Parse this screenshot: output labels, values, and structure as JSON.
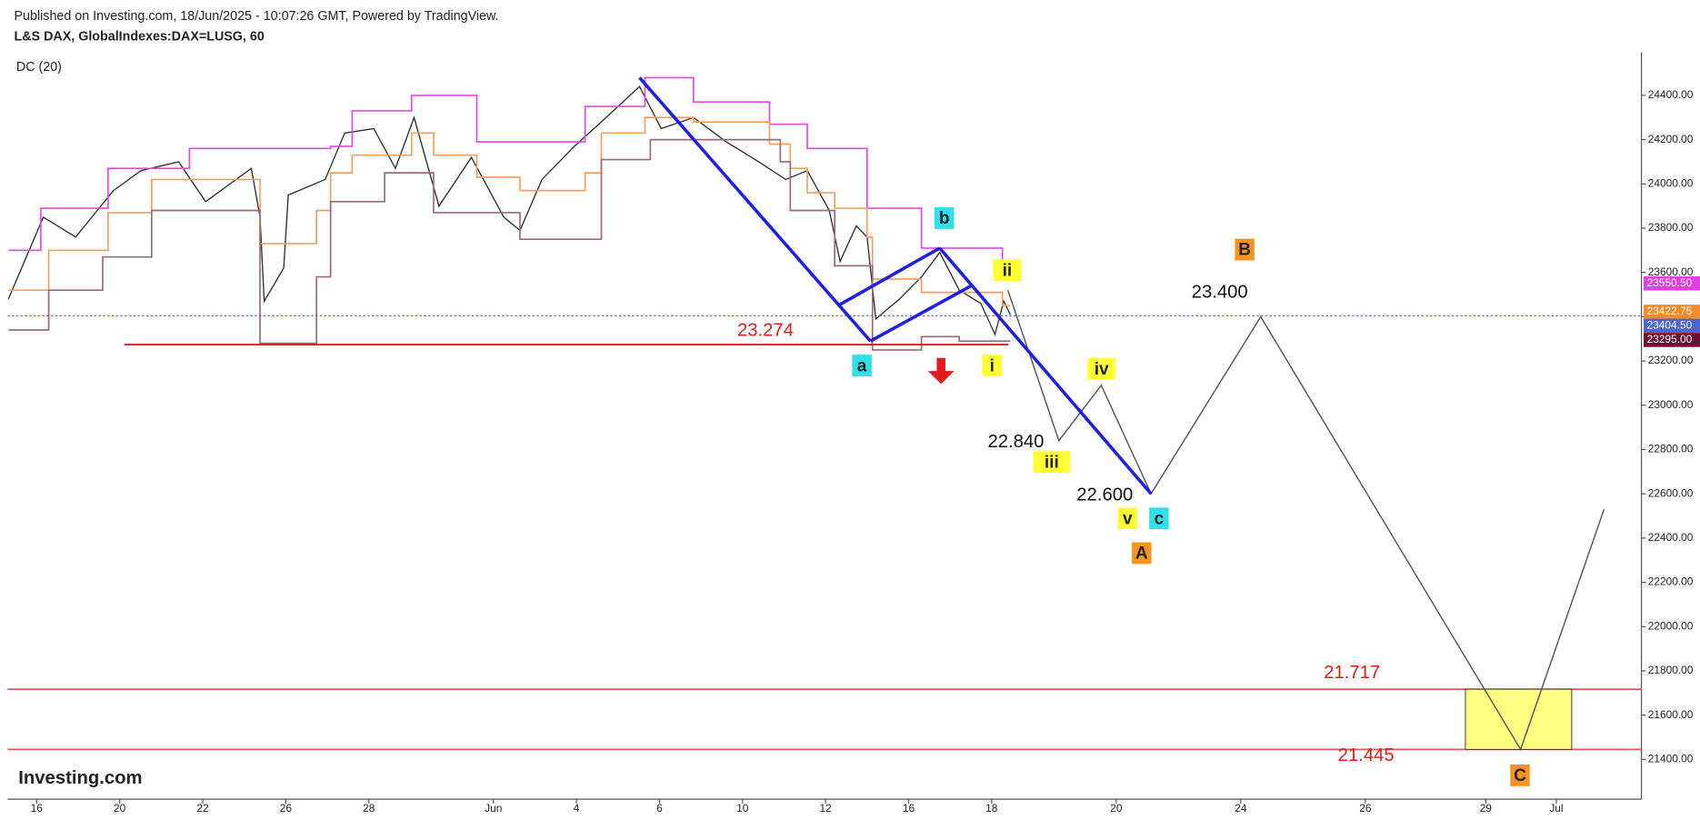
{
  "header": {
    "published": "Published on Investing.com, 18/Jun/2025 - 10:07:26 GMT, Powered by TradingView.",
    "symbol": "L&S DAX, GlobalIndexes:DAX=LUSG, 60",
    "indicator": "DC (20)",
    "logo": "Investing.com"
  },
  "chart_data": {
    "type": "line",
    "xlim": [
      -0.7,
      38.65
    ],
    "ylim": [
      21220,
      24595
    ],
    "xticks": [
      {
        "value": 0,
        "label": "16"
      },
      {
        "value": 2,
        "label": "20"
      },
      {
        "value": 4,
        "label": "22"
      },
      {
        "value": 6,
        "label": "26"
      },
      {
        "value": 8,
        "label": "28"
      },
      {
        "value": 11,
        "label": "Jun"
      },
      {
        "value": 13,
        "label": "4"
      },
      {
        "value": 15,
        "label": "6"
      },
      {
        "value": 17,
        "label": "10"
      },
      {
        "value": 19,
        "label": "12"
      },
      {
        "value": 21,
        "label": "16"
      },
      {
        "value": 23,
        "label": "18"
      },
      {
        "value": 26,
        "label": "20"
      },
      {
        "value": 29,
        "label": "24"
      },
      {
        "value": 32,
        "label": "26"
      },
      {
        "value": 34.9,
        "label": "29"
      },
      {
        "value": 36.6,
        "label": "Jul"
      }
    ],
    "yticks": [
      {
        "value": 21400,
        "label": "21400.00"
      },
      {
        "value": 21600,
        "label": "21600.00"
      },
      {
        "value": 21800,
        "label": "21800.00"
      },
      {
        "value": 22000,
        "label": "22000.00"
      },
      {
        "value": 22200,
        "label": "22200.00"
      },
      {
        "value": 22400,
        "label": "22400.00"
      },
      {
        "value": 22600,
        "label": "22600.00"
      },
      {
        "value": 22800,
        "label": "22800.00"
      },
      {
        "value": 23000,
        "label": "23000.00"
      },
      {
        "value": 23200,
        "label": "23200.00"
      },
      {
        "value": 23400,
        "label": "23400.00"
      },
      {
        "value": 23600,
        "label": "23600.00"
      },
      {
        "value": 23800,
        "label": "23800.00"
      },
      {
        "value": 24000,
        "label": "24000.00"
      },
      {
        "value": 24200,
        "label": "24200.00"
      },
      {
        "value": 24400,
        "label": "24400.00"
      }
    ],
    "series": [
      {
        "color": "#2a2a2a",
        "x": [
          -0.68,
          0.16,
          0.94,
          1.85,
          2.51,
          3.42,
          4.07,
          5.17,
          5.38,
          5.48,
          5.95,
          6.06,
          6.95,
          7.42,
          8.12,
          8.64,
          9.09,
          9.69,
          10.47,
          11.25,
          11.64,
          12.17,
          12.95,
          13.6,
          14.52,
          15.04,
          15.82,
          16.61,
          17.39,
          18.04,
          18.56,
          19.09,
          19.35,
          19.74,
          20.0,
          20.21,
          20.78,
          21.31,
          21.75,
          22.22,
          22.74,
          23.08,
          23.29,
          23.45
        ],
        "values": [
          23480,
          23850,
          23760,
          23970,
          24060,
          24100,
          23920,
          24070,
          23850,
          23470,
          23620,
          23950,
          24020,
          24230,
          24250,
          24070,
          24300,
          23900,
          24120,
          23850,
          23790,
          24020,
          24170,
          24280,
          24440,
          24250,
          24300,
          24190,
          24100,
          24020,
          24060,
          23880,
          23650,
          23810,
          23760,
          23390,
          23480,
          23580,
          23690,
          23520,
          23460,
          23320,
          23470,
          23410
        ]
      },
      {
        "color": "#e448e4",
        "step": true,
        "x": [
          -0.68,
          0.1,
          1.72,
          3.68,
          7.08,
          7.6,
          9.03,
          10.6,
          13.21,
          14.65,
          15.82,
          17.65,
          18.56,
          20.0,
          21.31,
          23.26,
          23.45
        ],
        "values": [
          23700,
          23890,
          24070,
          24160,
          24170,
          24330,
          24400,
          24190,
          24350,
          24480,
          24370,
          24270,
          24160,
          23890,
          23710,
          23610,
          23610
        ]
      },
      {
        "color": "#f5a05a",
        "step": true,
        "x": [
          -0.68,
          0.29,
          1.72,
          2.77,
          5.38,
          6.74,
          7.08,
          7.6,
          9.03,
          9.56,
          10.6,
          11.64,
          13.21,
          13.6,
          14.65,
          15.82,
          17.65,
          18.15,
          18.56,
          19.22,
          20.0,
          20.13,
          21.31,
          23.26,
          23.45
        ],
        "values": [
          23520,
          23700,
          23870,
          24020,
          23730,
          23880,
          24050,
          24130,
          24230,
          24130,
          24030,
          23970,
          24050,
          24230,
          24300,
          24280,
          24180,
          24070,
          23960,
          23890,
          23760,
          23570,
          23510,
          23450,
          23450
        ]
      },
      {
        "color": "#9a6a78",
        "step": true,
        "x": [
          -0.68,
          0.29,
          1.59,
          2.77,
          5.38,
          6.74,
          7.08,
          8.38,
          9.56,
          11.64,
          13.6,
          14.78,
          17.91,
          18.15,
          19.22,
          20.13,
          21.31,
          22.22,
          23.45
        ],
        "values": [
          23340,
          23520,
          23670,
          23880,
          23280,
          23580,
          23920,
          24050,
          23870,
          23750,
          24110,
          24200,
          24100,
          23880,
          23630,
          23250,
          23310,
          23290,
          23290
        ]
      }
    ],
    "hlines": [
      {
        "value": 23274,
        "x": [
          2.11,
          23.4
        ],
        "color": "#e01b1b"
      },
      {
        "value": 21717,
        "color": "#e05a5a"
      },
      {
        "value": 21445,
        "color": "#e05a5a"
      },
      {
        "value": 23404.5,
        "color": "#4a5fd0",
        "dash": true
      }
    ],
    "segments": [
      {
        "color": "#1f1fe0",
        "x": [
          14.52,
          20.08
        ],
        "values": [
          24480,
          23290
        ]
      },
      {
        "color": "#1f1fe0",
        "x": [
          19.3,
          21.75
        ],
        "values": [
          23450,
          23710
        ]
      },
      {
        "color": "#1f1fe0",
        "x": [
          20.08,
          22.51
        ],
        "values": [
          23290,
          23540
        ]
      },
      {
        "color": "#1f1fe0",
        "x": [
          21.75,
          26.84
        ],
        "values": [
          23710,
          22600
        ]
      }
    ],
    "projection": {
      "color": "#555555",
      "x": [
        23.39,
        24.62,
        25.64,
        26.84,
        29.48,
        35.74,
        37.75
      ],
      "values": [
        23520,
        22840,
        23090,
        22600,
        23400,
        21445,
        22530
      ]
    },
    "box": {
      "x": [
        34.41,
        36.97
      ],
      "values": [
        21445,
        21717
      ],
      "color": "#ffff80"
    },
    "price_tags": [
      {
        "value": 23550.5,
        "label": "23550.50",
        "color": "#e040e0"
      },
      {
        "value": 23422.75,
        "label": "23422.75",
        "color": "#f28c28"
      },
      {
        "value": 23404.5,
        "label": "23404.50",
        "color": "#4a66d8"
      },
      {
        "value": 23295,
        "label": "23295.00",
        "color": "#6b1030"
      }
    ],
    "wave_labels": [
      {
        "text": "a",
        "color": "#2ee0ea"
      },
      {
        "text": "b",
        "color": "#2ee0ea"
      },
      {
        "text": "c",
        "color": "#2ee0ea"
      },
      {
        "text": "i",
        "color": "#ffff33"
      },
      {
        "text": "ii",
        "color": "#ffff33"
      },
      {
        "text": "iii",
        "color": "#ffff33"
      },
      {
        "text": "iv",
        "color": "#ffff33"
      },
      {
        "text": "v",
        "color": "#ffff33"
      },
      {
        "text": "A",
        "color": "#f7941d"
      },
      {
        "text": "B",
        "color": "#f7941d"
      },
      {
        "text": "C",
        "color": "#f7941d"
      }
    ],
    "annotations": [
      {
        "text": "23.274",
        "color": "#e01b1b"
      },
      {
        "text": "22.840",
        "color": "#111111"
      },
      {
        "text": "22.600",
        "color": "#111111"
      },
      {
        "text": "23.400",
        "color": "#111111"
      },
      {
        "text": "21.717",
        "color": "#e01b1b"
      },
      {
        "text": "21.445",
        "color": "#e01b1b"
      }
    ]
  }
}
